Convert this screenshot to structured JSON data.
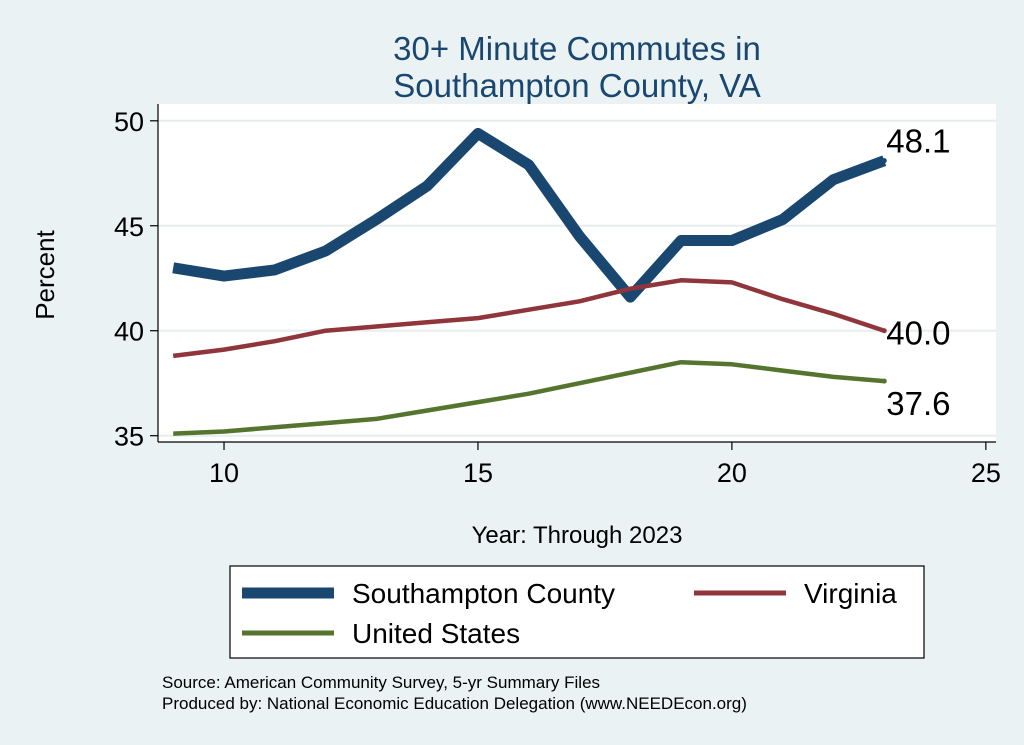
{
  "chart_data": {
    "type": "line",
    "title_lines": [
      "30+ Minute Commutes in",
      "Southampton County, VA"
    ],
    "xlabel": "Year: Through 2023",
    "ylabel": "Percent",
    "xlim": [
      8.7,
      25.2
    ],
    "ylim": [
      34.7,
      50.8
    ],
    "xticks": [
      10,
      15,
      20,
      25
    ],
    "yticks": [
      35,
      40,
      45,
      50
    ],
    "grid": true,
    "legend_position": "bottom",
    "series": [
      {
        "name": "Southampton County",
        "color": "#1a476f",
        "x": [
          9,
          10,
          11,
          12,
          13,
          14,
          15,
          16,
          17,
          18,
          19,
          20,
          21,
          22,
          23
        ],
        "y": [
          43.0,
          42.6,
          42.9,
          43.8,
          45.3,
          46.9,
          49.4,
          47.9,
          44.5,
          41.6,
          44.3,
          44.3,
          45.3,
          47.2,
          48.1
        ],
        "end_label": "48.1"
      },
      {
        "name": "Virginia",
        "color": "#90353b",
        "x": [
          9,
          10,
          11,
          12,
          13,
          14,
          15,
          16,
          17,
          18,
          19,
          20,
          21,
          22,
          23
        ],
        "y": [
          38.8,
          39.1,
          39.5,
          40.0,
          40.2,
          40.4,
          40.6,
          41.0,
          41.4,
          42.0,
          42.4,
          42.3,
          41.5,
          40.8,
          40.0
        ],
        "end_label": "40.0"
      },
      {
        "name": "United States",
        "color": "#55752f",
        "x": [
          9,
          10,
          11,
          12,
          13,
          14,
          15,
          16,
          17,
          18,
          19,
          20,
          21,
          22,
          23
        ],
        "y": [
          35.1,
          35.2,
          35.4,
          35.6,
          35.8,
          36.2,
          36.6,
          37.0,
          37.5,
          38.0,
          38.5,
          38.4,
          38.1,
          37.8,
          37.6
        ],
        "end_label": "37.6"
      }
    ],
    "notes": [
      "Source: American Community Survey, 5-yr Summary Files",
      "Produced by: National Economic Education Delegation (www.NEEDEcon.org)"
    ]
  }
}
